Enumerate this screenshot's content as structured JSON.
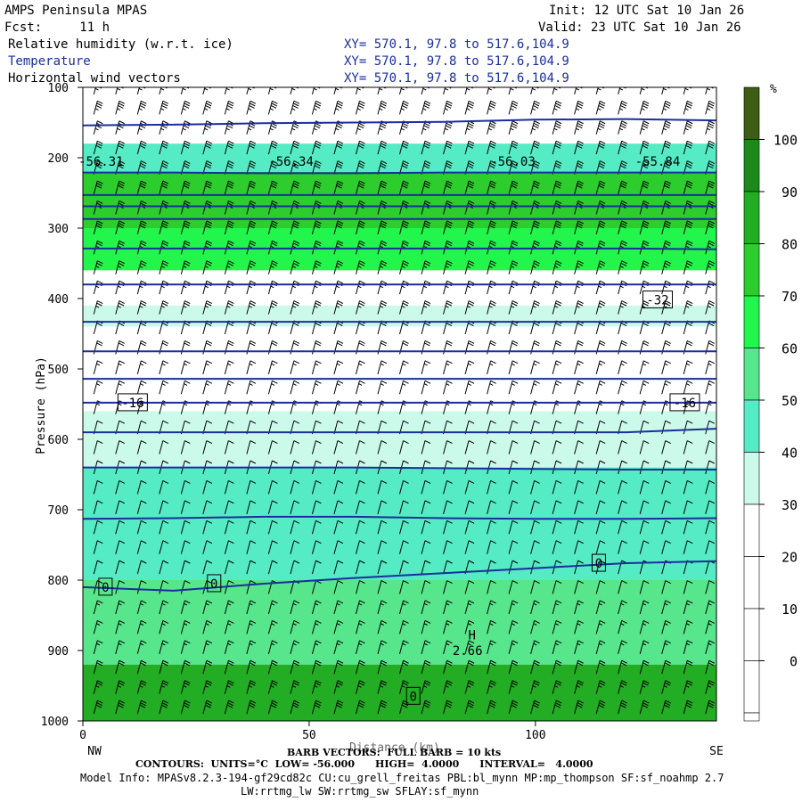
{
  "header": {
    "model": "AMPS Peninsula MPAS",
    "fcst": "Fcst:     11 h",
    "init": "Init: 12 UTC Sat 10 Jan 26",
    "valid": "Valid: 23 UTC Sat 10 Jan 26",
    "field1": "Relative humidity (w.r.t. ice)",
    "field2": "Temperature",
    "field3": "Horizontal wind vectors",
    "xy1": "XY= 570.1, 97.8 to 517.6,104.9",
    "xy2": "XY= 570.1, 97.8 to 517.6,104.9",
    "xy3": "XY= 570.1, 97.8 to 517.6,104.9"
  },
  "footer": {
    "barb": "BARB VECTORS:  FULL BARB = 10 kts",
    "xlabel_overlap": "Distance (km)",
    "contours": "CONTOURS:  UNITS=°C  LOW= -56.000      HIGH=  4.0000      INTERVAL=   4.0000",
    "model_info": "Model Info: MPASv8.2.3-194-gf29cd82c CU:cu_grell_freitas PBL:bl_mynn MP:mp_thompson SF:sf_noahmp 2.7",
    "model_info2": "LW:rrtmg_lw SW:rrtmg_sw SFLAY:sf_mynn"
  },
  "colors": {
    "temp_line": "#1a2e9e",
    "rh_bins": [
      "#ffffff",
      "#ffffff",
      "#ffffff",
      "#ffffff",
      "#ffffff",
      "#ffffff",
      "#ccfaea",
      "#55ebc4",
      "#57e68b",
      "#22f54c",
      "#2dcd2e",
      "#23ad24",
      "#1b8a1b",
      "#3d5c14"
    ]
  },
  "chart_data": {
    "type": "heatmap",
    "title": "Relative humidity (w.r.t. ice) / Temperature / Horizontal wind vectors",
    "xlabel": "Distance (km)",
    "ylabel": "Pressure (hPa)",
    "xlim": [
      0,
      140
    ],
    "ylim": [
      1000,
      100
    ],
    "x_ticks": [
      0,
      50,
      100
    ],
    "y_ticks": [
      100,
      200,
      300,
      400,
      500,
      600,
      700,
      800,
      900,
      1000
    ],
    "x_end_labels": [
      "NW",
      "SE"
    ],
    "colorbar": {
      "unit": "%",
      "ticks": [
        100,
        90,
        80,
        70,
        60,
        50,
        40,
        30,
        20,
        10,
        0
      ]
    },
    "temperature_labels": [
      {
        "text": "-56.31",
        "x": 4,
        "p": 205
      },
      {
        "text": "-56.34",
        "x": 46,
        "p": 205
      },
      {
        "text": "-56.03",
        "x": 95,
        "p": 205
      },
      {
        "text": "-55.84",
        "x": 127,
        "p": 205
      },
      {
        "text": "-32",
        "x": 127,
        "p": 402
      },
      {
        "text": "-16",
        "x": 11,
        "p": 548
      },
      {
        "text": "-16",
        "x": 133,
        "p": 548
      },
      {
        "text": "0",
        "x": 5,
        "p": 810
      },
      {
        "text": "0",
        "x": 29,
        "p": 805
      },
      {
        "text": "0",
        "x": 114,
        "p": 776
      },
      {
        "text": "0",
        "x": 73,
        "p": 965
      },
      {
        "text": "H",
        "x": 86,
        "p": 878
      },
      {
        "text": "2.66",
        "x": 85,
        "p": 900
      }
    ],
    "isotherms": [
      {
        "t": -56,
        "p": [
          154,
          153,
          151,
          150,
          149,
          146,
          145,
          147
        ]
      },
      {
        "t": -52,
        "p": [
          221,
          221,
          222,
          222,
          221,
          221,
          221,
          221
        ]
      },
      {
        "t": -48,
        "p": [
          253,
          253,
          253,
          253,
          253,
          253,
          253,
          253
        ]
      },
      {
        "t": -44,
        "p": [
          269,
          269,
          269,
          269,
          269,
          269,
          269,
          269
        ]
      },
      {
        "t": -40,
        "p": [
          287,
          287,
          287,
          287,
          287,
          287,
          287,
          287
        ]
      },
      {
        "t": -36,
        "p": [
          329,
          329,
          329,
          329,
          329,
          329,
          329,
          330
        ]
      },
      {
        "t": -32,
        "p": [
          380,
          380,
          380,
          380,
          380,
          380,
          380,
          380
        ]
      },
      {
        "t": -28,
        "p": [
          433,
          433,
          433,
          433,
          433,
          433,
          433,
          433
        ]
      },
      {
        "t": -24,
        "p": [
          475,
          475,
          475,
          475,
          475,
          475,
          475,
          475
        ]
      },
      {
        "t": -20,
        "p": [
          514,
          514,
          514,
          514,
          514,
          514,
          514,
          514
        ]
      },
      {
        "t": -16,
        "p": [
          548,
          548,
          548,
          548,
          548,
          548,
          548,
          548
        ]
      },
      {
        "t": -12,
        "p": [
          590,
          590,
          590,
          590,
          590,
          590,
          590,
          585
        ]
      },
      {
        "t": -8,
        "p": [
          640,
          640,
          640,
          640,
          641,
          642,
          643,
          643
        ]
      },
      {
        "t": -4,
        "p": [
          713,
          712,
          710,
          710,
          712,
          713,
          713,
          712
        ]
      },
      {
        "t": 0,
        "p": [
          810,
          815,
          805,
          797,
          790,
          783,
          776,
          773
        ]
      }
    ],
    "rh_profile": [
      {
        "p": [
          100,
          180
        ],
        "rh": 0
      },
      {
        "p": [
          180,
          220
        ],
        "rh": 45
      },
      {
        "p": [
          220,
          300
        ],
        "rh": 75
      },
      {
        "p": [
          300,
          360
        ],
        "rh": 65
      },
      {
        "p": [
          360,
          410
        ],
        "rh": 15
      },
      {
        "p": [
          410,
          440
        ],
        "rh": 35
      },
      {
        "p": [
          440,
          560
        ],
        "rh": 15
      },
      {
        "p": [
          560,
          640
        ],
        "rh": 35
      },
      {
        "p": [
          640,
          800
        ],
        "rh": 45
      },
      {
        "p": [
          800,
          920
        ],
        "rh": 55
      },
      {
        "p": [
          920,
          1000
        ],
        "rh": 80
      }
    ],
    "wind_barbs": {
      "columns": 29,
      "levels": 32,
      "speed_kts_by_p": [
        [
          100,
          35
        ],
        [
          400,
          25
        ],
        [
          600,
          10
        ],
        [
          800,
          10
        ],
        [
          950,
          20
        ],
        [
          1000,
          35
        ]
      ]
    }
  }
}
